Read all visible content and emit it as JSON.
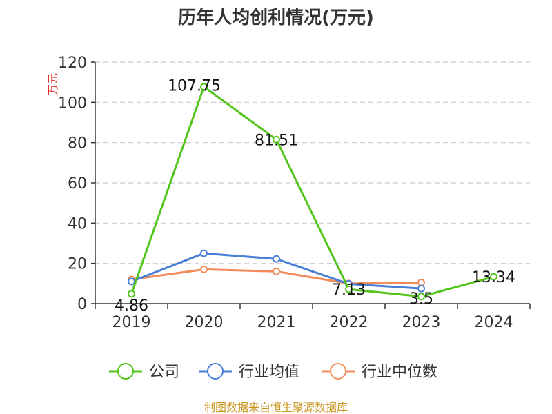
{
  "chart_data": {
    "type": "line",
    "title": "历年人均创利情况(万元)",
    "ylabel": "万元",
    "categories": [
      "2019",
      "2020",
      "2021",
      "2022",
      "2023",
      "2024"
    ],
    "ylim": [
      0,
      120
    ],
    "yticks": [
      0,
      20,
      40,
      60,
      80,
      100,
      120
    ],
    "grid": true,
    "legend_position": "bottom",
    "series": [
      {
        "name": "公司",
        "color": "#52c41a",
        "values": [
          4.86,
          107.75,
          81.51,
          7.13,
          3.5,
          13.34
        ],
        "labels": [
          "4.86",
          "107.75",
          "81.51",
          "7.13",
          "3.5",
          "13.34"
        ]
      },
      {
        "name": "行业均值",
        "color": "#4a7fd8",
        "values": [
          11,
          25,
          22.2,
          9.8,
          7.5,
          null
        ]
      },
      {
        "name": "行业中位数",
        "color": "#f28c5a",
        "values": [
          12,
          17,
          16,
          10,
          10.5,
          null
        ]
      }
    ],
    "source": "制图数据来自恒生聚源数据库",
    "colors": {
      "axis": "#333333",
      "grid": "#cccccc",
      "unit": "#e0302a",
      "source": "#c8961e"
    }
  }
}
